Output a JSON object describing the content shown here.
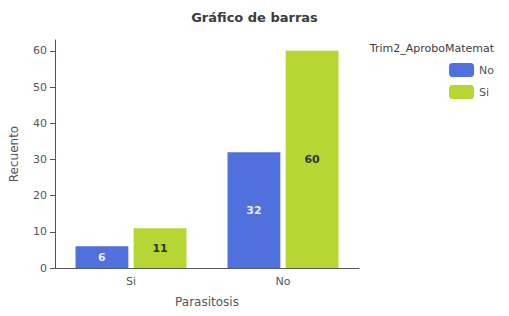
{
  "chart_data": {
    "type": "bar",
    "title": "Gráfico de barras",
    "xlabel": "Parasitosis",
    "ylabel": "Recuento",
    "categories": [
      "Si",
      "No"
    ],
    "series": [
      {
        "name": "No",
        "values": [
          6,
          32
        ]
      },
      {
        "name": "Si",
        "values": [
          11,
          60
        ]
      }
    ],
    "ylim": [
      0,
      63
    ],
    "yticks": [
      0,
      10,
      20,
      30,
      40,
      50,
      60
    ],
    "grid": false,
    "legend": "upper right",
    "legend_title": "Trim2_AproboMatemat",
    "data_labels": true
  }
}
